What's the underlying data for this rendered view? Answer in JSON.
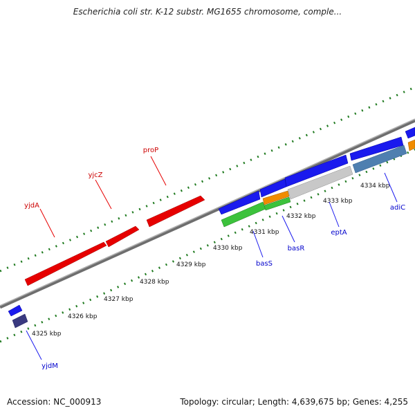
{
  "map": {
    "title": "Escherichia coli str. K-12 substr. MG1655 chromosome, comple...",
    "accession_label": "Accession: NC_000913",
    "topology_label": "Topology: circular; Length: 4,639,675 bp; Genes: 4,255"
  },
  "colors": {
    "forward_gene": "#e60000",
    "reverse_gene": "#1a1aee",
    "rna_gene": "#3cc23c",
    "orange_gene": "#f08c00",
    "gray_gene": "#c8c8c8",
    "steel_gene": "#4f7fb0",
    "navy_gene": "#3a3a80",
    "backbone": "#8a8a8a",
    "tick": "#1f7a1f",
    "forward_label": "#cc0000",
    "reverse_label": "#0000cc"
  },
  "scale": {
    "ticks": [
      {
        "label": "4325 kbp",
        "kbp": 4325
      },
      {
        "label": "4326 kbp",
        "kbp": 4326
      },
      {
        "label": "4327 kbp",
        "kbp": 4327
      },
      {
        "label": "4328 kbp",
        "kbp": 4328
      },
      {
        "label": "4329 kbp",
        "kbp": 4329
      },
      {
        "label": "4330 kbp",
        "kbp": 4330
      },
      {
        "label": "4331 kbp",
        "kbp": 4331
      },
      {
        "label": "4332 kbp",
        "kbp": 4332
      },
      {
        "label": "4333 kbp",
        "kbp": 4333
      },
      {
        "label": "4334 kbp",
        "kbp": 4334
      }
    ]
  },
  "gene_labels": {
    "forward": [
      {
        "name": "yjdA"
      },
      {
        "name": "yjcZ"
      },
      {
        "name": "proP"
      }
    ],
    "reverse": [
      {
        "name": "yjdM"
      },
      {
        "name": "basS"
      },
      {
        "name": "basR"
      },
      {
        "name": "eptA"
      },
      {
        "name": "adiC"
      }
    ]
  }
}
